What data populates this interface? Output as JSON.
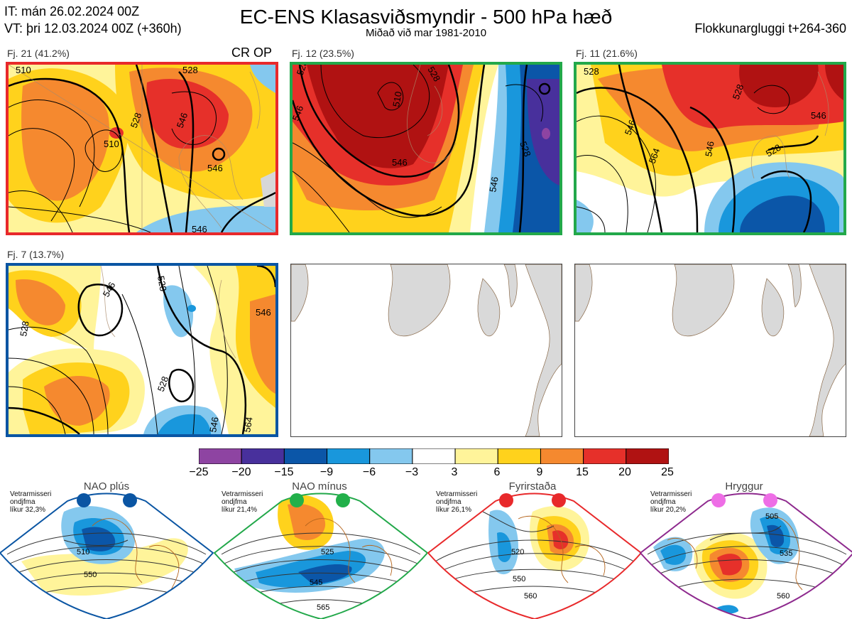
{
  "header": {
    "it_line": "IT: mán 26.02.2024 00Z",
    "vt_line": "VT: þri 12.03.2024 00Z  (+360h)",
    "title": "EC-ENS Klasasviðsmyndir - 500 hPa hæð",
    "subtitle": "Miðað við mar 1981-2010",
    "window": "Flokkunargluggi t+264-360"
  },
  "panels": [
    {
      "label": "Fj. 21 (41.2%)",
      "tag": "CR OP",
      "border": "#e8292b",
      "contours": [
        "510",
        "528",
        "546",
        "510",
        "546",
        "528",
        "546"
      ]
    },
    {
      "label": "Fj. 12 (23.5%)",
      "tag": "",
      "border": "#22a84a",
      "contours": [
        "528",
        "528",
        "546",
        "510",
        "528",
        "546",
        "546"
      ]
    },
    {
      "label": "Fj. 11 (21.6%)",
      "tag": "",
      "border": "#22a84a",
      "contours": [
        "528",
        "528",
        "546",
        "546",
        "564",
        "546",
        "528"
      ]
    },
    {
      "label": "Fj. 7 (13.7%)",
      "tag": "",
      "border": "#0a55a3",
      "contours": [
        "528",
        "546",
        "528",
        "528",
        "546",
        "546",
        "564"
      ]
    }
  ],
  "colorbar": {
    "colors": [
      "#8e44a2",
      "#48309c",
      "#0b56a8",
      "#1997dc",
      "#84c8ee",
      "#ffffff",
      "#fff49a",
      "#ffd21c",
      "#f5892f",
      "#e6302a",
      "#b01212"
    ],
    "ticks": [
      "−25",
      "−20",
      "−15",
      "−9",
      "−6",
      "−3",
      "3",
      "6",
      "9",
      "15",
      "20",
      "25"
    ]
  },
  "regimes": [
    {
      "title": "NAO plús",
      "note": [
        "Vetrarmisseri",
        "ondjfma",
        "líkur 32,3%"
      ],
      "color": "#0a55a3",
      "dot": "#0a55a3",
      "contours": [
        "510",
        "550"
      ]
    },
    {
      "title": "NAO mínus",
      "note": [
        "Vetrarmisseri",
        "ondjfma",
        "líkur 21,4%"
      ],
      "color": "#22a84a",
      "dot": "#22b04a",
      "contours": [
        "525",
        "545",
        "565"
      ]
    },
    {
      "title": "Fyrirstaða",
      "note": [
        "Vetrarmisseri",
        "ondjfma",
        "líkur 26,1%"
      ],
      "color": "#e8292b",
      "dot": "#e8292b",
      "contours": [
        "520",
        "550",
        "560"
      ]
    },
    {
      "title": "Hryggur",
      "note": [
        "Vetrarmisseri",
        "ondjfma",
        "líkur 20,2%"
      ],
      "color": "#8e2a8e",
      "dot": "#ee6ee6",
      "contours": [
        "505",
        "535",
        "560"
      ]
    }
  ]
}
